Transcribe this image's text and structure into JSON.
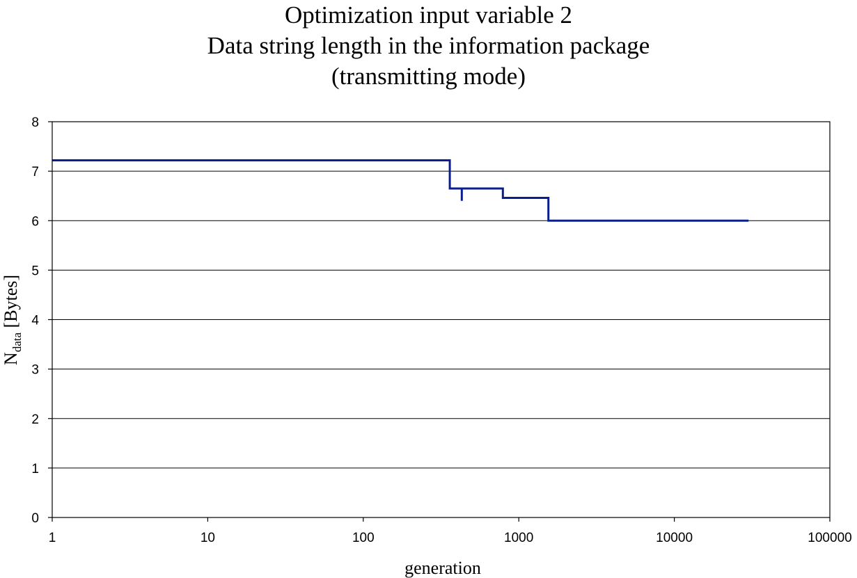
{
  "chart_data": {
    "type": "line",
    "title_lines": [
      "Optimization input variable 2",
      "Data string length in the information package",
      "(transmitting mode)"
    ],
    "xlabel": "generation",
    "ylabel": {
      "main": "N",
      "subscript": "data",
      "suffix": " [Bytes]"
    },
    "x_scale": "log",
    "xlim": [
      1,
      100000
    ],
    "ylim": [
      0,
      8
    ],
    "x_ticks": [
      1,
      10,
      100,
      1000,
      10000,
      100000
    ],
    "x_tick_labels": [
      "1",
      "10",
      "100",
      "1000",
      "10000",
      "100000"
    ],
    "y_ticks": [
      0,
      1,
      2,
      3,
      4,
      5,
      6,
      7,
      8
    ],
    "y_tick_labels": [
      "0",
      "1",
      "2",
      "3",
      "4",
      "5",
      "6",
      "7",
      "8"
    ],
    "grid": "horizontal",
    "legend": "none",
    "series": [
      {
        "color": "#0a1f8f",
        "x": [
          1,
          360,
          360,
          430,
          430,
          430,
          790,
          790,
          1550,
          1550,
          30000
        ],
        "y": [
          7.22,
          7.22,
          6.65,
          6.65,
          6.4,
          6.65,
          6.65,
          6.46,
          6.46,
          6.0,
          6.0
        ]
      }
    ]
  }
}
